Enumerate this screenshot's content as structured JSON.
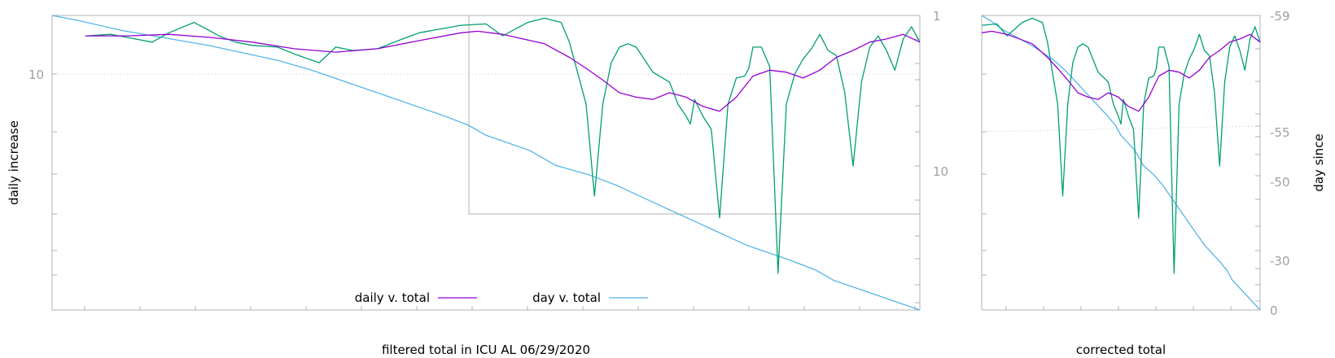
{
  "chart_data": [
    {
      "type": "line",
      "xlabel": "filtered total in ICU AL 06/29/2020",
      "ylabel": "daily increase",
      "y_tick_labels": [
        "10"
      ],
      "y2_tick_labels": [
        "1",
        "10"
      ],
      "legend": {
        "placement": "bottom-center",
        "entries": [
          "daily v. total",
          "day v. total"
        ]
      },
      "colors": {
        "daily_v_total": "#9400d3",
        "day_v_total": "#56b4e9",
        "daily_raw": "#009e73"
      },
      "series": [
        {
          "name": "daily v. total",
          "x": [
            0,
            2,
            5,
            10,
            15,
            20,
            25,
            30,
            35,
            40,
            45,
            47,
            50,
            55,
            58,
            60,
            62,
            64,
            66,
            68,
            70,
            72,
            74,
            76,
            78,
            80,
            82,
            84,
            86,
            88,
            90,
            92,
            94,
            96,
            98,
            100
          ],
          "y": [
            10.6,
            10.6,
            10.6,
            10.7,
            10.5,
            10.2,
            9.8,
            9.6,
            9.8,
            10.3,
            10.8,
            10.9,
            10.7,
            10.1,
            9.3,
            8.7,
            8.1,
            7.5,
            7.3,
            7.2,
            7.5,
            7.3,
            6.9,
            6.7,
            7.3,
            8.3,
            8.6,
            8.5,
            8.2,
            8.6,
            9.3,
            9.7,
            10.2,
            10.4,
            10.7,
            10.2
          ]
        },
        {
          "name": "day v. total",
          "x": [
            0,
            3,
            8,
            13,
            18,
            22,
            26,
            30,
            35,
            40,
            45,
            48,
            50,
            55,
            58,
            62,
            65,
            70,
            75,
            80,
            85,
            88,
            90,
            95,
            100
          ],
          "y": [
            -59,
            -58,
            -56,
            -54.5,
            -53,
            -51.5,
            -50,
            -48,
            -45,
            -42,
            -39,
            -37,
            -35,
            -32,
            -29,
            -27,
            -25,
            -21,
            -17,
            -13,
            -10,
            -8,
            -6,
            -3,
            0
          ]
        },
        {
          "name": "",
          "x": [
            0,
            3,
            5,
            8,
            10,
            13,
            15,
            16,
            18,
            20,
            23,
            25,
            28,
            30,
            31,
            32,
            35,
            38,
            40,
            42,
            45,
            48,
            50,
            53,
            55,
            57,
            58,
            60,
            61,
            62,
            63,
            64,
            65,
            66,
            68,
            70,
            71,
            72,
            72.5,
            73,
            74,
            75,
            76,
            77,
            78,
            79,
            79.5,
            80,
            81,
            82,
            83,
            84,
            85,
            86,
            87,
            88,
            89,
            90,
            91,
            92,
            93,
            94,
            95,
            96,
            97,
            98,
            99,
            100
          ],
          "y": [
            10.6,
            10.7,
            10.5,
            10.2,
            10.8,
            11.5,
            10.9,
            10.6,
            10.2,
            10.0,
            9.9,
            9.5,
            9.0,
            9.9,
            9.8,
            9.7,
            9.8,
            10.4,
            10.8,
            11.0,
            11.3,
            11.4,
            10.6,
            11.5,
            11.8,
            11.5,
            10.2,
            7.0,
            4.0,
            7.0,
            9.0,
            9.9,
            10.1,
            9.9,
            8.5,
            8.0,
            7.0,
            6.5,
            6.2,
            7.2,
            6.5,
            6.0,
            3.5,
            7.0,
            8.2,
            8.3,
            8.7,
            9.9,
            9.9,
            8.8,
            2.5,
            7.0,
            8.4,
            9.2,
            9.8,
            10.7,
            9.7,
            9.4,
            7.5,
            4.8,
            8.0,
            9.9,
            10.6,
            9.7,
            8.6,
            10.4,
            11.2,
            10.2
          ]
        }
      ]
    },
    {
      "type": "line",
      "xlabel": "corrected total",
      "ylabel": "day since",
      "y_tick_labels": [
        "-59",
        "-55",
        "-50",
        "-30",
        "0"
      ]
    }
  ]
}
